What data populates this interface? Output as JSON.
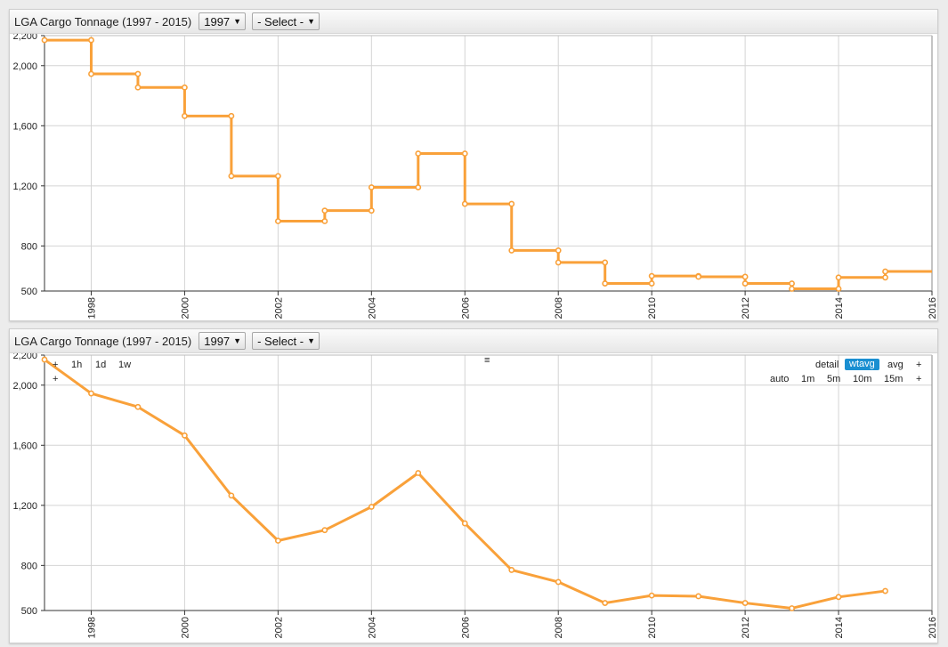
{
  "colors": {
    "series": "#f9a13a",
    "grid": "#d4d4d4",
    "axis": "#333333",
    "active": "#1a8fd1"
  },
  "widgets": [
    {
      "title": "LGA Cargo Tonnage (1997 - 2015)",
      "year_select": "1997",
      "series_select": "- Select -",
      "style": "step"
    },
    {
      "title": "LGA Cargo Tonnage (1997 - 2015)",
      "year_select": "1997",
      "series_select": "- Select -",
      "style": "line",
      "controls": {
        "zoom_left": [
          "+",
          "1h",
          "1d",
          "1w"
        ],
        "zoom_left_row2": "+",
        "menu": "≡",
        "modes": [
          "detail",
          "wtavg",
          "avg",
          "+"
        ],
        "active_mode": "wtavg",
        "periods": [
          "auto",
          "1m",
          "5m",
          "10m",
          "15m",
          "+"
        ]
      }
    }
  ],
  "chart_data": [
    {
      "type": "line",
      "step": true,
      "x": [
        1997,
        1998,
        1999,
        2000,
        2001,
        2002,
        2003,
        2004,
        2005,
        2006,
        2007,
        2008,
        2009,
        2010,
        2011,
        2012,
        2013,
        2014,
        2015
      ],
      "values": [
        2170,
        1945,
        1855,
        1665,
        1265,
        965,
        1035,
        1190,
        1415,
        1080,
        770,
        690,
        550,
        600,
        595,
        550,
        515,
        590,
        630
      ],
      "xlim": [
        1997,
        2016
      ],
      "ylim": [
        500,
        2200
      ],
      "x_ticks": [
        "1998",
        "2000",
        "2002",
        "2004",
        "2006",
        "2008",
        "2010",
        "2012",
        "2014",
        "2016"
      ],
      "y_ticks": [
        "500",
        "800",
        "1,200",
        "1,600",
        "2,000",
        "2,200"
      ],
      "grid": true
    },
    {
      "type": "line",
      "step": false,
      "x": [
        1997,
        1998,
        1999,
        2000,
        2001,
        2002,
        2003,
        2004,
        2005,
        2006,
        2007,
        2008,
        2009,
        2010,
        2011,
        2012,
        2013,
        2014,
        2015
      ],
      "values": [
        2170,
        1945,
        1855,
        1665,
        1265,
        965,
        1035,
        1190,
        1415,
        1080,
        770,
        690,
        550,
        600,
        595,
        550,
        515,
        590,
        630
      ],
      "xlim": [
        1997,
        2016
      ],
      "ylim": [
        500,
        2200
      ],
      "x_ticks": [
        "1998",
        "2000",
        "2002",
        "2004",
        "2006",
        "2008",
        "2010",
        "2012",
        "2014",
        "2016"
      ],
      "y_ticks": [
        "500",
        "800",
        "1,200",
        "1,600",
        "2,000",
        "2,200"
      ],
      "grid": true
    }
  ]
}
